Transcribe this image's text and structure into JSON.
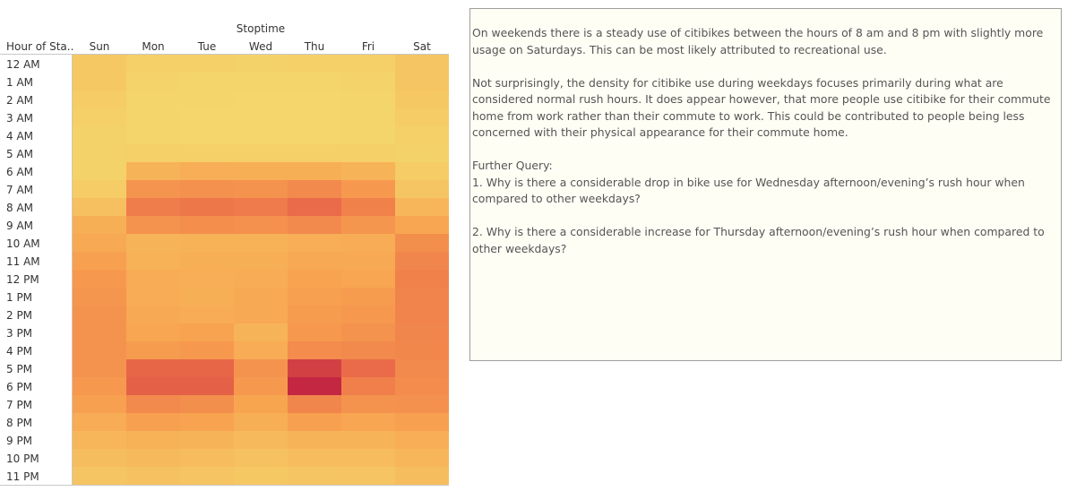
{
  "chart_data": {
    "type": "heatmap",
    "title": "",
    "xlabel": "Stoptime",
    "ylabel": "Hour of Sta..",
    "x_categories": [
      "Sun",
      "Mon",
      "Tue",
      "Wed",
      "Thu",
      "Fri",
      "Sat"
    ],
    "y_categories": [
      "12 AM",
      "1 AM",
      "2 AM",
      "3 AM",
      "4 AM",
      "5 AM",
      "6 AM",
      "7 AM",
      "8 AM",
      "9 AM",
      "10 AM",
      "11 AM",
      "12 PM",
      "1 PM",
      "2 PM",
      "3 PM",
      "4 PM",
      "5 PM",
      "6 PM",
      "7 PM",
      "8 PM",
      "9 PM",
      "10 PM",
      "11 PM"
    ],
    "intensity_scale": [
      0,
      1
    ],
    "color_scale": [
      "#f4d86d",
      "#f8a450",
      "#ec6e49",
      "#bd1a40"
    ],
    "values": [
      [
        0.1,
        0.06,
        0.05,
        0.04,
        0.05,
        0.06,
        0.12
      ],
      [
        0.1,
        0.03,
        0.02,
        0.02,
        0.02,
        0.03,
        0.12
      ],
      [
        0.08,
        0.02,
        0.02,
        0.01,
        0.01,
        0.02,
        0.1
      ],
      [
        0.06,
        0.02,
        0.01,
        0.01,
        0.01,
        0.02,
        0.08
      ],
      [
        0.04,
        0.02,
        0.01,
        0.01,
        0.01,
        0.02,
        0.06
      ],
      [
        0.04,
        0.06,
        0.06,
        0.06,
        0.06,
        0.06,
        0.04
      ],
      [
        0.04,
        0.24,
        0.27,
        0.26,
        0.26,
        0.24,
        0.08
      ],
      [
        0.08,
        0.43,
        0.45,
        0.44,
        0.5,
        0.4,
        0.12
      ],
      [
        0.16,
        0.58,
        0.61,
        0.59,
        0.68,
        0.55,
        0.22
      ],
      [
        0.26,
        0.44,
        0.47,
        0.45,
        0.5,
        0.42,
        0.32
      ],
      [
        0.3,
        0.24,
        0.25,
        0.25,
        0.27,
        0.28,
        0.46
      ],
      [
        0.36,
        0.25,
        0.26,
        0.26,
        0.3,
        0.3,
        0.52
      ],
      [
        0.4,
        0.28,
        0.27,
        0.28,
        0.34,
        0.32,
        0.55
      ],
      [
        0.42,
        0.28,
        0.26,
        0.3,
        0.36,
        0.38,
        0.54
      ],
      [
        0.44,
        0.3,
        0.28,
        0.3,
        0.38,
        0.4,
        0.53
      ],
      [
        0.44,
        0.32,
        0.34,
        0.24,
        0.4,
        0.44,
        0.52
      ],
      [
        0.44,
        0.38,
        0.4,
        0.28,
        0.48,
        0.5,
        0.51
      ],
      [
        0.44,
        0.7,
        0.7,
        0.44,
        0.85,
        0.68,
        0.5
      ],
      [
        0.4,
        0.72,
        0.72,
        0.4,
        0.95,
        0.56,
        0.48
      ],
      [
        0.36,
        0.5,
        0.46,
        0.33,
        0.52,
        0.44,
        0.45
      ],
      [
        0.28,
        0.36,
        0.34,
        0.26,
        0.36,
        0.32,
        0.36
      ],
      [
        0.22,
        0.25,
        0.24,
        0.2,
        0.24,
        0.24,
        0.27
      ],
      [
        0.17,
        0.19,
        0.18,
        0.15,
        0.18,
        0.18,
        0.22
      ],
      [
        0.12,
        0.14,
        0.13,
        0.1,
        0.12,
        0.13,
        0.17
      ]
    ],
    "grid": false,
    "legend": "none"
  },
  "notes": {
    "paragraphs": [
      "On weekends there is a steady use of citibikes between the hours of 8 am and  8 pm with slightly more usage on Saturdays.  This can be most likely attributed to recreational use.",
      "Not surprisingly,  the density for citibike use during weekdays focuses primarily during what are considered normal rush hours.  It does appear however, that more people use citibike for their commute home from work rather than their commute to work.  This could be contributed to people being less concerned with their physical appearance for their commute home."
    ],
    "query_heading": "Further Query:",
    "query_1": "1. Why is there a considerable drop in bike use for  Wednesday afternoon/evening’s rush hour when compared to other weekdays?",
    "query_2": "2. Why is there a considerable increase for Thursday afternoon/evening’s rush hour when compared to other weekdays?"
  }
}
